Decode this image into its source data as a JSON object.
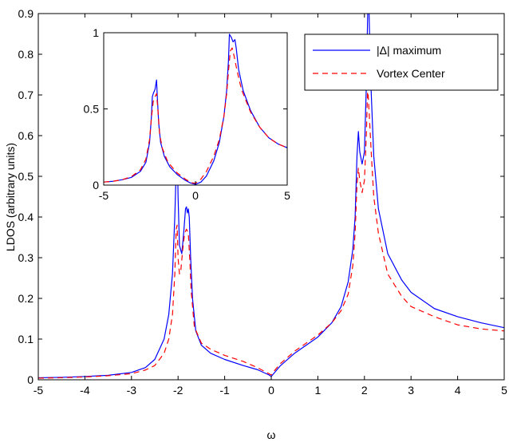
{
  "chart_data": {
    "type": "line",
    "title": "",
    "xlabel": "ω",
    "ylabel": "LDOS (arbitrary units)",
    "xlim": [
      -5,
      5
    ],
    "ylim": [
      0,
      0.9
    ],
    "xticks": [
      -5,
      -4,
      -3,
      -2,
      -1,
      0,
      1,
      2,
      3,
      4,
      5
    ],
    "yticks": [
      0,
      0.1,
      0.2,
      0.3,
      0.4,
      0.5,
      0.6,
      0.7,
      0.8,
      0.9
    ],
    "grid": false,
    "legend_position": "top-right",
    "series": [
      {
        "name": "|Δ| maximum",
        "color": "#0000ff",
        "dash": "solid",
        "points": [
          [
            -5,
            0.005
          ],
          [
            -4.5,
            0.006
          ],
          [
            -4,
            0.008
          ],
          [
            -3.5,
            0.011
          ],
          [
            -3,
            0.018
          ],
          [
            -2.7,
            0.03
          ],
          [
            -2.5,
            0.05
          ],
          [
            -2.3,
            0.1
          ],
          [
            -2.2,
            0.16
          ],
          [
            -2.12,
            0.26
          ],
          [
            -2.07,
            0.4
          ],
          [
            -2.04,
            0.52
          ],
          [
            -2.02,
            0.6
          ],
          [
            -2.0,
            0.45
          ],
          [
            -1.97,
            0.33
          ],
          [
            -1.92,
            0.31
          ],
          [
            -1.88,
            0.36
          ],
          [
            -1.84,
            0.42
          ],
          [
            -1.82,
            0.425
          ],
          [
            -1.8,
            0.41
          ],
          [
            -1.78,
            0.42
          ],
          [
            -1.76,
            0.4
          ],
          [
            -1.73,
            0.3
          ],
          [
            -1.69,
            0.2
          ],
          [
            -1.62,
            0.12
          ],
          [
            -1.5,
            0.085
          ],
          [
            -1.3,
            0.065
          ],
          [
            -1.0,
            0.05
          ],
          [
            -0.6,
            0.035
          ],
          [
            -0.3,
            0.025
          ],
          [
            -0.05,
            0.012
          ],
          [
            0,
            0.008
          ],
          [
            0.05,
            0.015
          ],
          [
            0.2,
            0.035
          ],
          [
            0.5,
            0.065
          ],
          [
            1.0,
            0.105
          ],
          [
            1.3,
            0.14
          ],
          [
            1.5,
            0.18
          ],
          [
            1.65,
            0.24
          ],
          [
            1.75,
            0.32
          ],
          [
            1.8,
            0.4
          ],
          [
            1.84,
            0.55
          ],
          [
            1.87,
            0.61
          ],
          [
            1.9,
            0.56
          ],
          [
            1.95,
            0.53
          ],
          [
            2.0,
            0.56
          ],
          [
            2.04,
            0.72
          ],
          [
            2.07,
            0.9
          ],
          [
            2.1,
            0.9
          ],
          [
            2.13,
            0.75
          ],
          [
            2.2,
            0.55
          ],
          [
            2.3,
            0.42
          ],
          [
            2.5,
            0.31
          ],
          [
            2.8,
            0.245
          ],
          [
            3.0,
            0.215
          ],
          [
            3.5,
            0.175
          ],
          [
            4.0,
            0.155
          ],
          [
            4.5,
            0.14
          ],
          [
            5.0,
            0.128
          ]
        ]
      },
      {
        "name": "Vortex Center",
        "color": "#ff0000",
        "dash": "dashed",
        "points": [
          [
            -5,
            0.004
          ],
          [
            -4.5,
            0.005
          ],
          [
            -4,
            0.007
          ],
          [
            -3.5,
            0.01
          ],
          [
            -3,
            0.015
          ],
          [
            -2.7,
            0.024
          ],
          [
            -2.5,
            0.035
          ],
          [
            -2.3,
            0.065
          ],
          [
            -2.2,
            0.1
          ],
          [
            -2.12,
            0.16
          ],
          [
            -2.07,
            0.26
          ],
          [
            -2.04,
            0.37
          ],
          [
            -2.02,
            0.38
          ],
          [
            -2.0,
            0.3
          ],
          [
            -1.97,
            0.26
          ],
          [
            -1.94,
            0.27
          ],
          [
            -1.9,
            0.32
          ],
          [
            -1.86,
            0.36
          ],
          [
            -1.82,
            0.37
          ],
          [
            -1.78,
            0.36
          ],
          [
            -1.75,
            0.3
          ],
          [
            -1.72,
            0.22
          ],
          [
            -1.65,
            0.13
          ],
          [
            -1.5,
            0.09
          ],
          [
            -1.3,
            0.075
          ],
          [
            -1.0,
            0.06
          ],
          [
            -0.6,
            0.045
          ],
          [
            -0.3,
            0.03
          ],
          [
            -0.05,
            0.015
          ],
          [
            0,
            0.012
          ],
          [
            0.05,
            0.02
          ],
          [
            0.2,
            0.04
          ],
          [
            0.5,
            0.07
          ],
          [
            1.0,
            0.11
          ],
          [
            1.3,
            0.14
          ],
          [
            1.5,
            0.17
          ],
          [
            1.65,
            0.21
          ],
          [
            1.75,
            0.28
          ],
          [
            1.8,
            0.36
          ],
          [
            1.84,
            0.48
          ],
          [
            1.87,
            0.52
          ],
          [
            1.9,
            0.49
          ],
          [
            1.95,
            0.46
          ],
          [
            2.0,
            0.49
          ],
          [
            2.04,
            0.6
          ],
          [
            2.07,
            0.72
          ],
          [
            2.1,
            0.66
          ],
          [
            2.15,
            0.55
          ],
          [
            2.2,
            0.45
          ],
          [
            2.3,
            0.36
          ],
          [
            2.5,
            0.26
          ],
          [
            2.8,
            0.205
          ],
          [
            3.0,
            0.18
          ],
          [
            3.5,
            0.155
          ],
          [
            4.0,
            0.135
          ],
          [
            4.5,
            0.125
          ],
          [
            5.0,
            0.12
          ]
        ]
      }
    ],
    "inset": {
      "xlim": [
        -5,
        5
      ],
      "ylim": [
        0,
        1
      ],
      "xticks": [
        -5,
        0,
        5
      ],
      "yticks": [
        0,
        0.5,
        1
      ],
      "series": [
        {
          "name": "|Δ| maximum",
          "color": "#0000ff",
          "dash": "solid",
          "points": [
            [
              -5,
              0.02
            ],
            [
              -4.5,
              0.025
            ],
            [
              -4,
              0.035
            ],
            [
              -3.5,
              0.05
            ],
            [
              -3,
              0.09
            ],
            [
              -2.7,
              0.15
            ],
            [
              -2.5,
              0.28
            ],
            [
              -2.4,
              0.45
            ],
            [
              -2.35,
              0.58
            ],
            [
              -2.3,
              0.6
            ],
            [
              -2.2,
              0.63
            ],
            [
              -2.12,
              0.69
            ],
            [
              -2.08,
              0.58
            ],
            [
              -2.0,
              0.4
            ],
            [
              -1.9,
              0.28
            ],
            [
              -1.7,
              0.19
            ],
            [
              -1.4,
              0.12
            ],
            [
              -1.0,
              0.07
            ],
            [
              -0.6,
              0.035
            ],
            [
              -0.3,
              0.015
            ],
            [
              0,
              0.005
            ],
            [
              0.3,
              0.02
            ],
            [
              0.6,
              0.06
            ],
            [
              1.0,
              0.16
            ],
            [
              1.3,
              0.28
            ],
            [
              1.55,
              0.45
            ],
            [
              1.7,
              0.62
            ],
            [
              1.8,
              0.82
            ],
            [
              1.85,
              0.99
            ],
            [
              1.95,
              0.97
            ],
            [
              2.05,
              0.94
            ],
            [
              2.15,
              0.955
            ],
            [
              2.22,
              0.9
            ],
            [
              2.35,
              0.76
            ],
            [
              2.6,
              0.62
            ],
            [
              3.0,
              0.49
            ],
            [
              3.5,
              0.38
            ],
            [
              4.0,
              0.31
            ],
            [
              4.5,
              0.27
            ],
            [
              5.0,
              0.245
            ]
          ]
        },
        {
          "name": "Vortex Center",
          "color": "#ff0000",
          "dash": "dashed",
          "points": [
            [
              -5,
              0.02
            ],
            [
              -4.5,
              0.025
            ],
            [
              -4,
              0.035
            ],
            [
              -3.5,
              0.055
            ],
            [
              -3,
              0.1
            ],
            [
              -2.7,
              0.17
            ],
            [
              -2.5,
              0.3
            ],
            [
              -2.4,
              0.44
            ],
            [
              -2.3,
              0.55
            ],
            [
              -2.2,
              0.58
            ],
            [
              -2.12,
              0.6
            ],
            [
              -2.05,
              0.5
            ],
            [
              -1.95,
              0.33
            ],
            [
              -1.8,
              0.24
            ],
            [
              -1.5,
              0.15
            ],
            [
              -1.0,
              0.08
            ],
            [
              -0.5,
              0.035
            ],
            [
              -0.2,
              0.015
            ],
            [
              0,
              0.012
            ],
            [
              0.3,
              0.04
            ],
            [
              0.6,
              0.09
            ],
            [
              1.0,
              0.19
            ],
            [
              1.3,
              0.3
            ],
            [
              1.55,
              0.45
            ],
            [
              1.7,
              0.6
            ],
            [
              1.8,
              0.75
            ],
            [
              1.9,
              0.88
            ],
            [
              2.0,
              0.9
            ],
            [
              2.1,
              0.85
            ],
            [
              2.25,
              0.76
            ],
            [
              2.5,
              0.63
            ],
            [
              3.0,
              0.48
            ],
            [
              3.5,
              0.38
            ],
            [
              4.0,
              0.31
            ],
            [
              4.5,
              0.27
            ],
            [
              5.0,
              0.245
            ]
          ]
        }
      ]
    }
  }
}
